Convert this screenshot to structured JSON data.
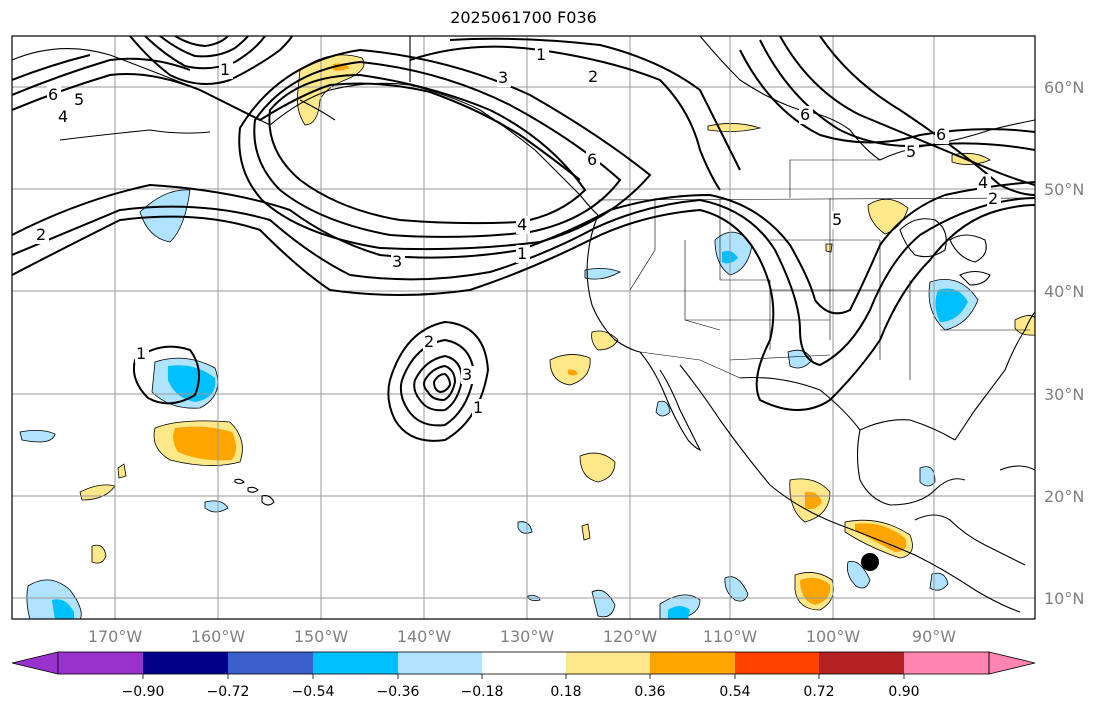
{
  "title": "2025061700 F036",
  "map": {
    "lon_labels": [
      "170°W",
      "160°W",
      "150°W",
      "140°W",
      "130°W",
      "120°W",
      "110°W",
      "100°W",
      "90°W"
    ],
    "lat_labels": [
      "60°N",
      "50°N",
      "40°N",
      "30°N",
      "20°N",
      "10°N"
    ],
    "gridline_color": "#999999",
    "coastline_color": "#000000"
  },
  "colorbar": {
    "ticks": [
      "−0.90",
      "−0.72",
      "−0.54",
      "−0.36",
      "−0.18",
      "0.18",
      "0.36",
      "0.54",
      "0.72",
      "0.90"
    ],
    "colors": [
      "#9932cc",
      "#00008b",
      "#3a5fcd",
      "#00bfff",
      "#afe3ff",
      "#ffffff",
      "#ffe88a",
      "#ffa500",
      "#ff4000",
      "#b22222",
      "#ff85b0"
    ]
  },
  "contour_labels": [
    "1",
    "2",
    "3",
    "4",
    "5",
    "6"
  ],
  "marker": {
    "label": "storm-center",
    "color": "#000000"
  }
}
